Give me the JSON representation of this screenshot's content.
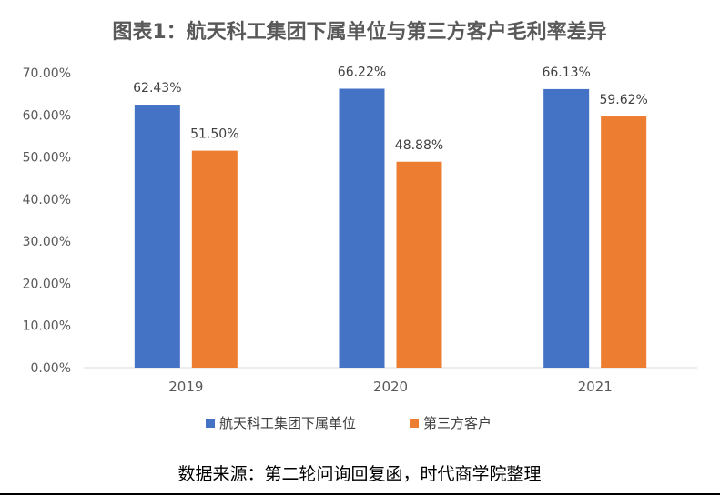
{
  "chart_data": {
    "type": "bar",
    "title": "图表1：航天科工集团下属单位与第三方客户毛利率差异",
    "categories": [
      "2019",
      "2020",
      "2021"
    ],
    "series": [
      {
        "name": "航天科工集团下属单位",
        "values": [
          62.43,
          66.22,
          66.13
        ],
        "labels": [
          "62.43%",
          "66.22%",
          "66.13%"
        ],
        "color": "#4472C4"
      },
      {
        "name": "第三方客户",
        "values": [
          51.5,
          48.88,
          59.62
        ],
        "labels": [
          "51.50%",
          "48.88%",
          "59.62%"
        ],
        "color": "#ED7D31"
      }
    ],
    "yticks": [
      "0.00%",
      "10.00%",
      "20.00%",
      "30.00%",
      "40.00%",
      "50.00%",
      "60.00%",
      "70.00%"
    ],
    "ylim": [
      0,
      70
    ],
    "grid": false,
    "legend": "bottom"
  },
  "source_note": "数据来源：第二轮问询回复函，时代商学院整理"
}
